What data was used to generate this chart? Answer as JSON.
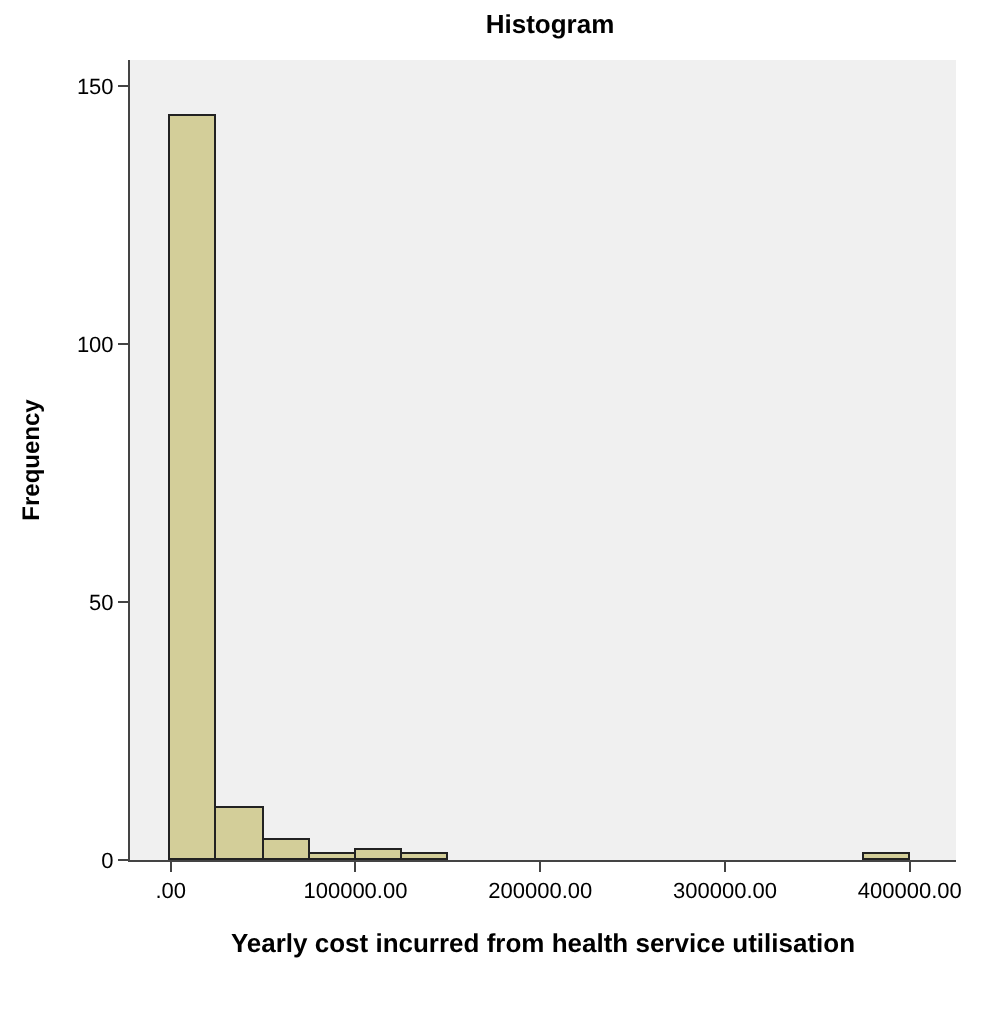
{
  "chart_data": {
    "type": "histogram",
    "title": "Histogram",
    "xlabel": "Yearly cost incurred from health service utilisation",
    "ylabel": "Frequency",
    "bins": [
      0,
      25000,
      50000,
      75000,
      100000,
      125000,
      150000,
      175000,
      200000,
      225000,
      250000,
      275000,
      300000,
      325000,
      350000,
      375000,
      400000
    ],
    "values": [
      144,
      10,
      4,
      1,
      2,
      1,
      0,
      0,
      0,
      0,
      0,
      0,
      0,
      0,
      0,
      1
    ],
    "color": "#d3ce99",
    "xlim": [
      -22000,
      425000
    ],
    "xticks": [
      {
        "value": 0,
        "label": ".00"
      },
      {
        "value": 100000,
        "label": "100000.00"
      },
      {
        "value": 200000,
        "label": "200000.00"
      },
      {
        "value": 300000,
        "label": "300000.00"
      },
      {
        "value": 400000,
        "label": "400000.00"
      }
    ],
    "ylim": [
      0,
      155
    ],
    "yticks": [
      0,
      50,
      100,
      150
    ],
    "grid": false
  }
}
